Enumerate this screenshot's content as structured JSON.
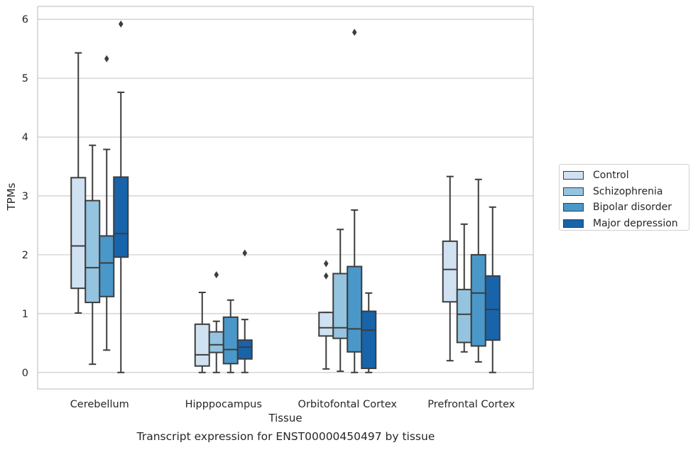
{
  "chart_data": {
    "type": "box",
    "xlabel": "Tissue",
    "ylabel": "TPMs",
    "caption": "Transcript expression for ENST00000450497 by tissue",
    "ylim": [
      -0.28,
      6.22
    ],
    "yticks": [
      0,
      1,
      2,
      3,
      4,
      5,
      6
    ],
    "grid": "horizontal",
    "legend_position": "right",
    "categories": [
      "Cerebellum",
      "Hipppocampus",
      "Orbitofontal Cortex",
      "Prefrontal Cortex"
    ],
    "series": [
      {
        "name": "Control",
        "color": "#d0e1f2",
        "boxes": [
          {
            "whisker_low": 1.01,
            "q1": 1.43,
            "median": 2.15,
            "q3": 3.31,
            "whisker_high": 5.43,
            "outliers": []
          },
          {
            "whisker_low": 0.0,
            "q1": 0.11,
            "median": 0.3,
            "q3": 0.82,
            "whisker_high": 1.36,
            "outliers": []
          },
          {
            "whisker_low": 0.06,
            "q1": 0.62,
            "median": 0.76,
            "q3": 1.02,
            "whisker_high": 1.02,
            "outliers": [
              1.64,
              1.85
            ]
          },
          {
            "whisker_low": 0.2,
            "q1": 1.2,
            "median": 1.75,
            "q3": 2.23,
            "whisker_high": 3.33,
            "outliers": []
          }
        ]
      },
      {
        "name": "Schizophrenia",
        "color": "#94c4df",
        "boxes": [
          {
            "whisker_low": 0.14,
            "q1": 1.19,
            "median": 1.78,
            "q3": 2.92,
            "whisker_high": 3.86,
            "outliers": []
          },
          {
            "whisker_low": 0.0,
            "q1": 0.34,
            "median": 0.47,
            "q3": 0.69,
            "whisker_high": 0.87,
            "outliers": [
              1.66
            ]
          },
          {
            "whisker_low": 0.02,
            "q1": 0.58,
            "median": 0.76,
            "q3": 1.68,
            "whisker_high": 2.43,
            "outliers": []
          },
          {
            "whisker_low": 0.35,
            "q1": 0.51,
            "median": 0.99,
            "q3": 1.41,
            "whisker_high": 2.52,
            "outliers": []
          }
        ]
      },
      {
        "name": "Bipolar disorder",
        "color": "#4a98c9",
        "boxes": [
          {
            "whisker_low": 0.38,
            "q1": 1.29,
            "median": 1.86,
            "q3": 2.32,
            "whisker_high": 3.79,
            "outliers": [
              5.33
            ]
          },
          {
            "whisker_low": 0.0,
            "q1": 0.15,
            "median": 0.39,
            "q3": 0.94,
            "whisker_high": 1.23,
            "outliers": []
          },
          {
            "whisker_low": 0.0,
            "q1": 0.35,
            "median": 0.74,
            "q3": 1.8,
            "whisker_high": 2.76,
            "outliers": [
              5.78
            ]
          },
          {
            "whisker_low": 0.18,
            "q1": 0.45,
            "median": 1.35,
            "q3": 2.0,
            "whisker_high": 3.28,
            "outliers": []
          }
        ]
      },
      {
        "name": "Major depression",
        "color": "#1764ab",
        "boxes": [
          {
            "whisker_low": 0.0,
            "q1": 1.96,
            "median": 2.36,
            "q3": 3.32,
            "whisker_high": 4.76,
            "outliers": [
              5.92
            ]
          },
          {
            "whisker_low": 0.0,
            "q1": 0.23,
            "median": 0.43,
            "q3": 0.55,
            "whisker_high": 0.9,
            "outliers": [
              2.03
            ]
          },
          {
            "whisker_low": 0.0,
            "q1": 0.07,
            "median": 0.72,
            "q3": 1.04,
            "whisker_high": 1.35,
            "outliers": []
          },
          {
            "whisker_low": 0.0,
            "q1": 0.55,
            "median": 1.07,
            "q3": 1.64,
            "whisker_high": 2.81,
            "outliers": []
          }
        ]
      }
    ]
  }
}
